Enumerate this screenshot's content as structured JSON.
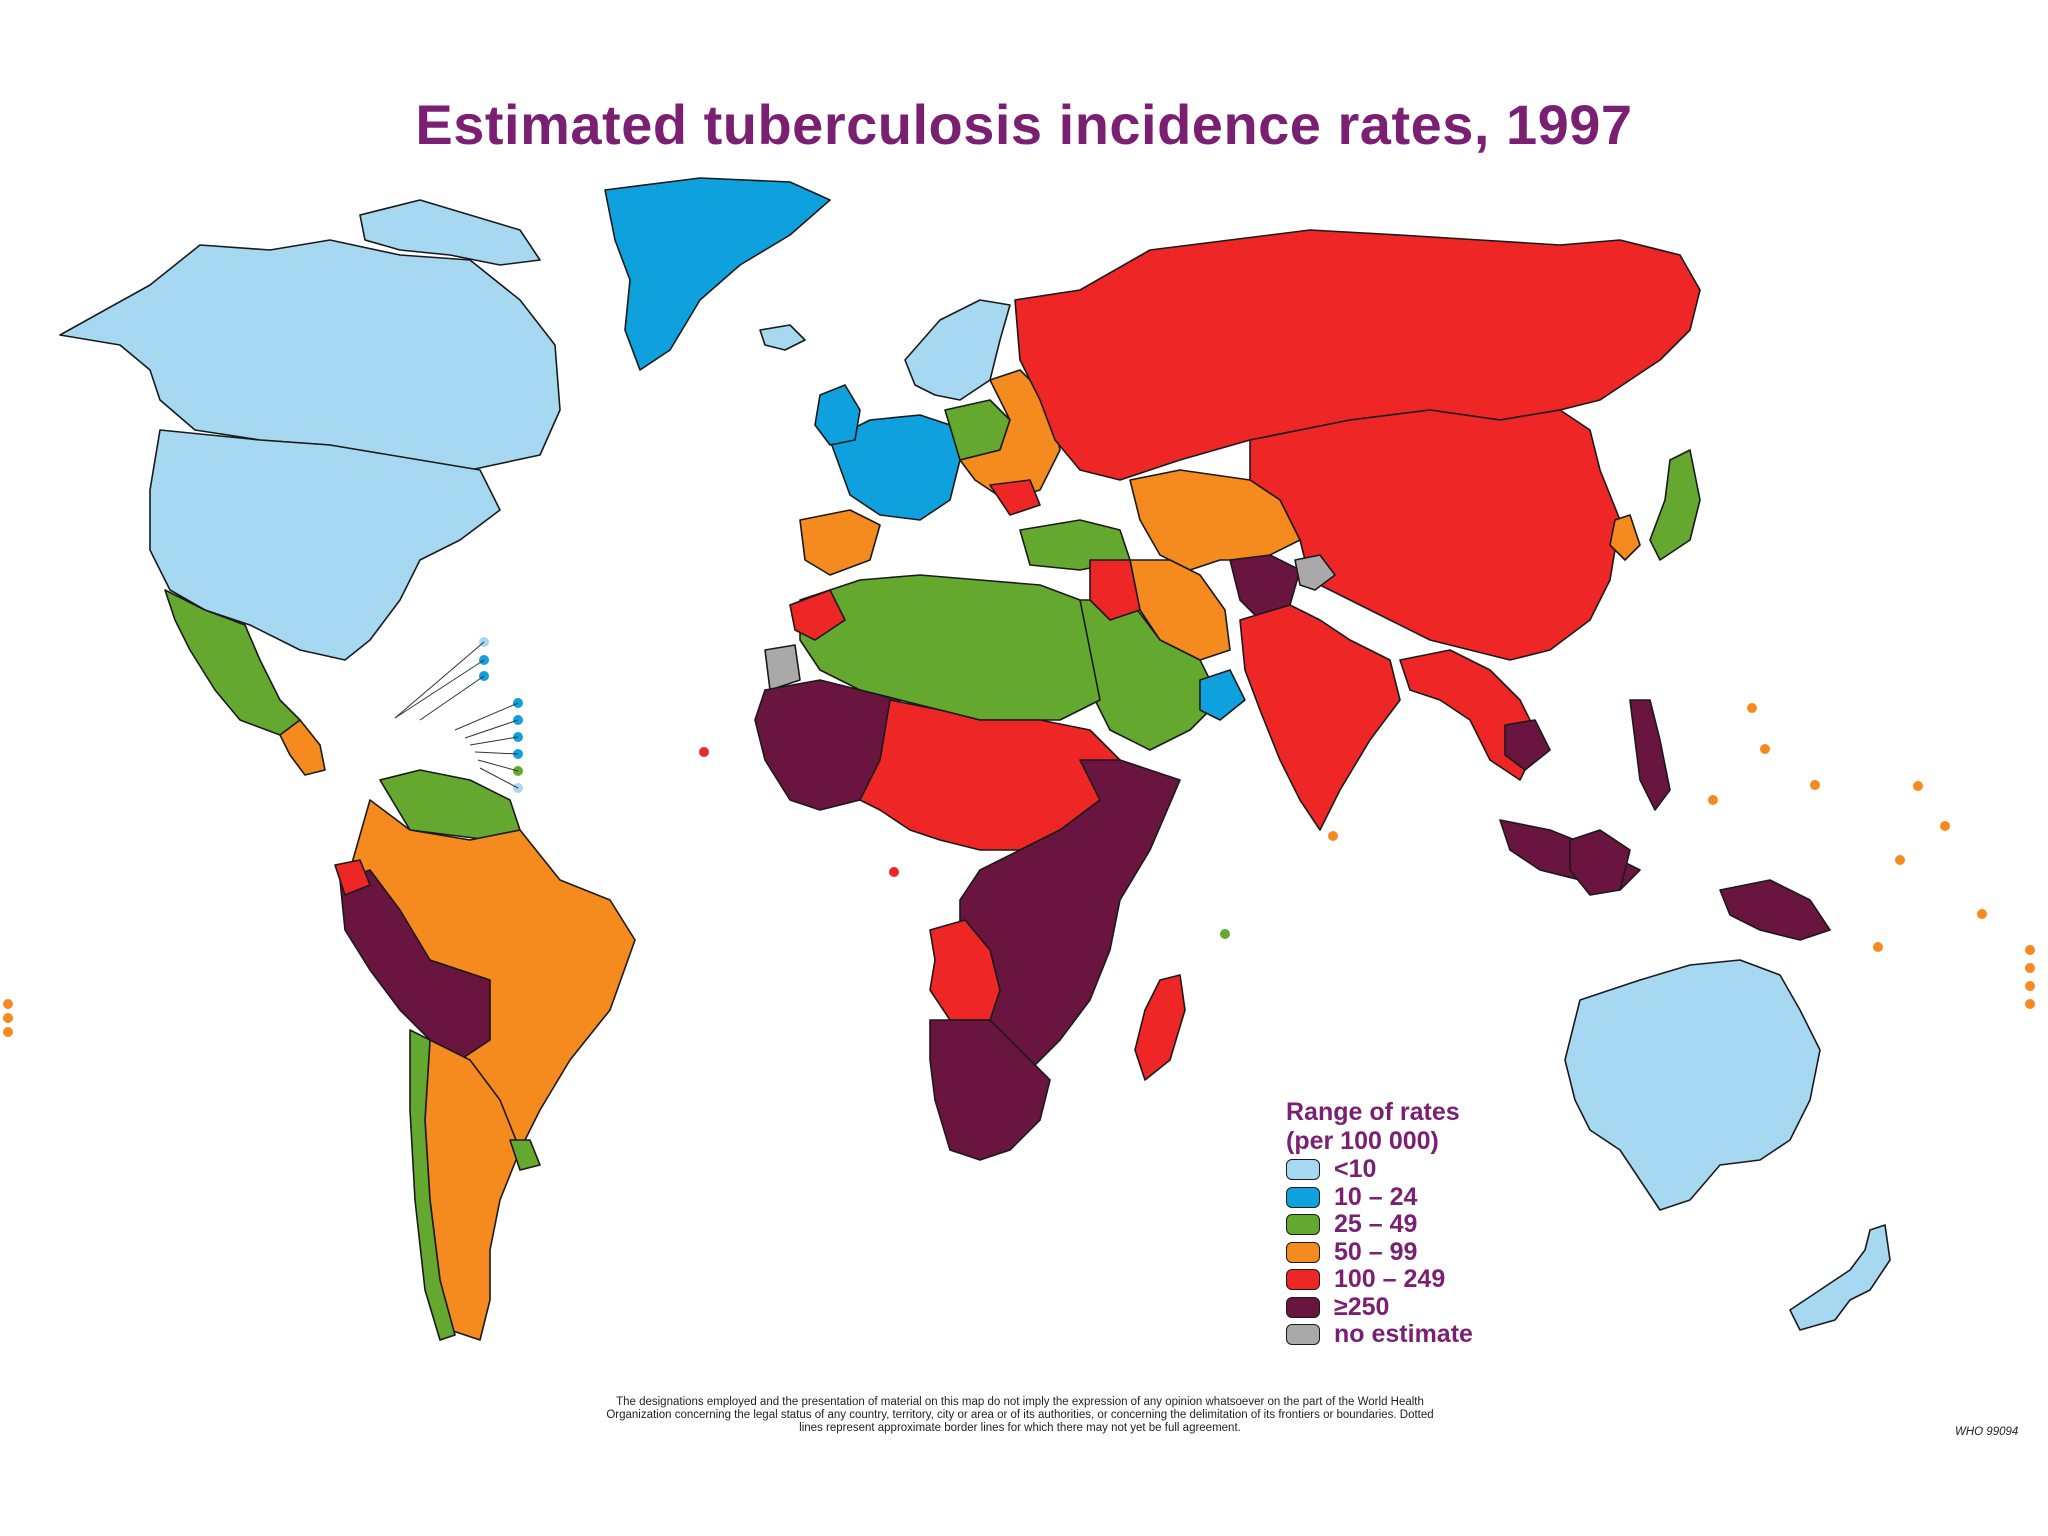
{
  "title": "Estimated tuberculosis incidence rates, 1997",
  "legend": {
    "title_line1": "Range of rates",
    "title_line2": "(per 100 000)",
    "items": [
      {
        "label": "<10",
        "color": "#a6d8f2"
      },
      {
        "label": "10 – 24",
        "color": "#0fa0de"
      },
      {
        "label": "25 – 49",
        "color": "#64a830"
      },
      {
        "label": "50 – 99",
        "color": "#f58a1f"
      },
      {
        "label": "100 – 249",
        "color": "#ef2626"
      },
      {
        "label": "≥250",
        "color": "#6a1540"
      },
      {
        "label": "no estimate",
        "color": "#a9a9a9"
      }
    ]
  },
  "disclaimer": {
    "line1": "The designations employed and the presentation of material on this map do not imply the expression of any opinion whatsoever on the part of the World Health",
    "line2": "Organization concerning the legal status of any country, territory, city or area or of its authorities, or concerning the delimitation of its frontiers or boundaries. Dotted",
    "line3": "lines represent approximate border lines for which there may not yet be full agreement."
  },
  "code": "WHO 99094"
}
